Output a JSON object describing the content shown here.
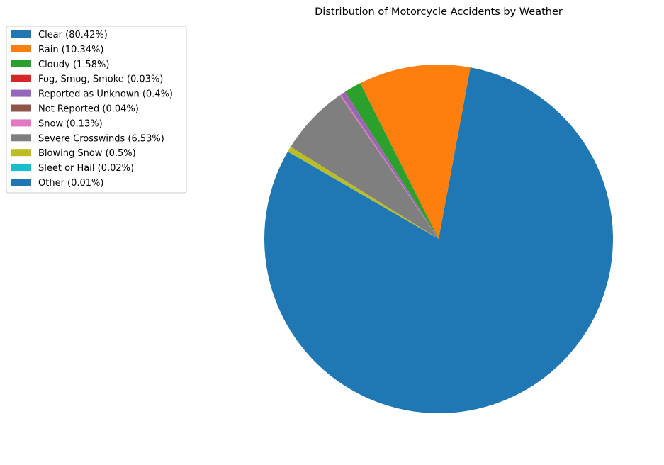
{
  "chart_data": {
    "type": "pie",
    "title": "Distribution of Motorcycle Accidents by Weather",
    "legend_position": "top-left",
    "start_angle_deg": 150,
    "direction": "counterclockwise",
    "slices": [
      {
        "label": "Clear (80.42%)",
        "value": 80.42,
        "color": "#1f77b4"
      },
      {
        "label": "Rain (10.34%)",
        "value": 10.34,
        "color": "#ff7f0e"
      },
      {
        "label": "Cloudy (1.58%)",
        "value": 1.58,
        "color": "#2ca02c"
      },
      {
        "label": "Fog, Smog, Smoke (0.03%)",
        "value": 0.03,
        "color": "#d62728"
      },
      {
        "label": "Reported as Unknown (0.4%)",
        "value": 0.4,
        "color": "#9467bd"
      },
      {
        "label": "Not Reported (0.04%)",
        "value": 0.04,
        "color": "#8c564b"
      },
      {
        "label": "Snow (0.13%)",
        "value": 0.13,
        "color": "#e377c2"
      },
      {
        "label": "Severe Crosswinds (6.53%)",
        "value": 6.53,
        "color": "#7f7f7f"
      },
      {
        "label": "Blowing Snow (0.5%)",
        "value": 0.5,
        "color": "#bcbd22"
      },
      {
        "label": "Sleet or Hail (0.02%)",
        "value": 0.02,
        "color": "#17becf"
      },
      {
        "label": "Other (0.01%)",
        "value": 0.01,
        "color": "#1f77b4"
      }
    ]
  }
}
